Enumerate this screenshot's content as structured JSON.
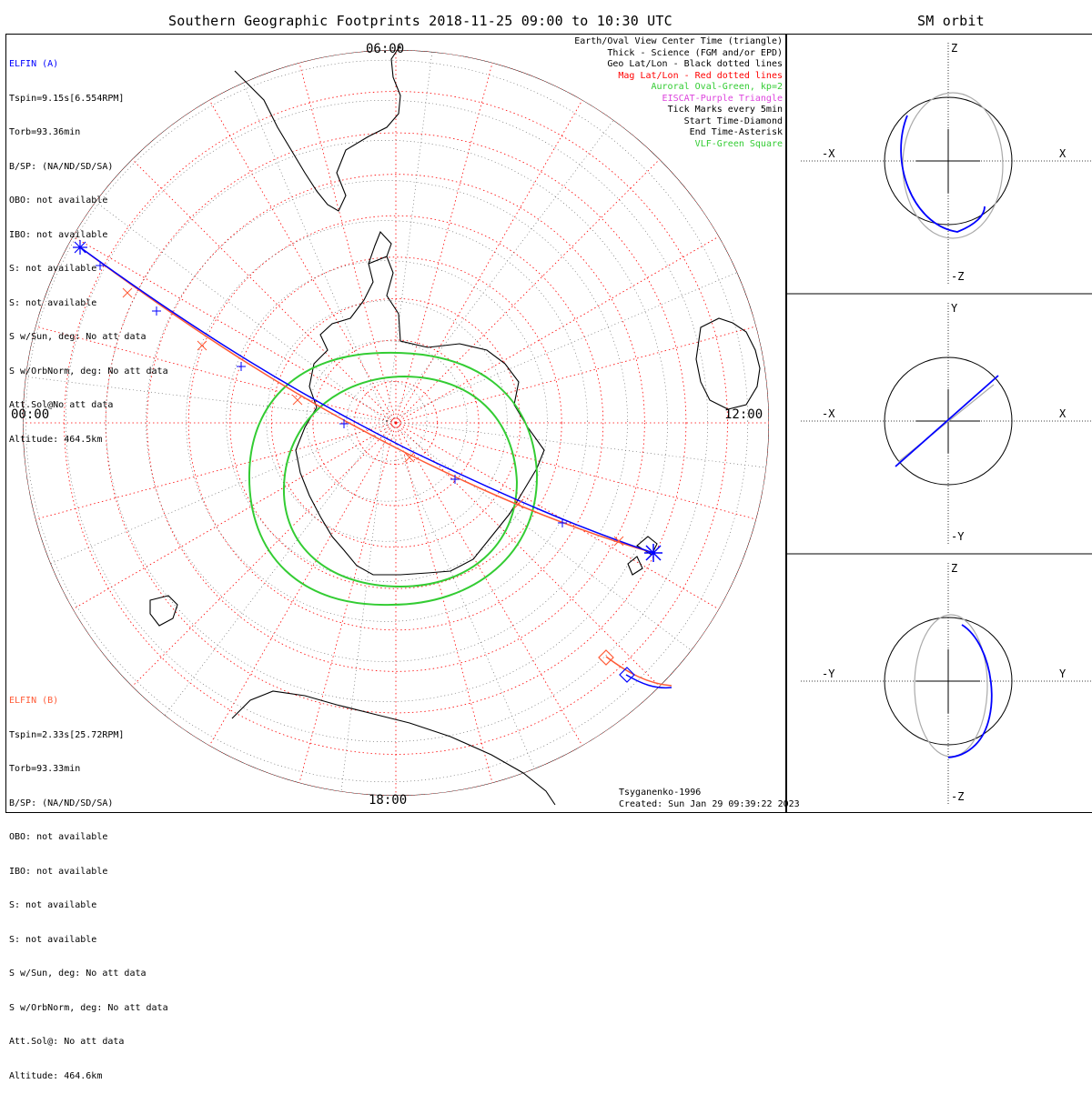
{
  "header": {
    "main_title": "Southern Geographic Footprints 2018-11-25 09:00 to 10:30 UTC",
    "sm_title": "SM orbit"
  },
  "elfin_a": {
    "name": "ELFIN (A)",
    "color": "#0000ff",
    "lines": [
      "Tspin=9.15s[6.554RPM]",
      "Torb=93.36min",
      "B/SP: (NA/ND/SD/SA)",
      "OBO: not available",
      "IBO: not available",
      "S: not available",
      "S: not available",
      "S w/Sun, deg: No att data",
      "S w/OrbNorm, deg: No att data",
      "Att.Sol@No att data",
      "Altitude: 464.5km"
    ]
  },
  "elfin_b": {
    "name": "ELFIN (B)",
    "color": "#ff5a36",
    "lines": [
      "Tspin=2.33s[25.72RPM]",
      "Torb=93.33min",
      "B/SP: (NA/ND/SD/SA)",
      "OBO: not available",
      "IBO: not available",
      "S: not available",
      "S: not available",
      "S w/Sun, deg: No att data",
      "S w/OrbNorm, deg: No att data",
      "Att.Sol@: No att data",
      "Altitude: 464.6km"
    ]
  },
  "legend": [
    {
      "text": "Earth/Oval View Center Time (triangle)",
      "color": "#000000"
    },
    {
      "text": "Thick - Science (FGM and/or EPD)",
      "color": "#000000"
    },
    {
      "text": "Geo Lat/Lon - Black dotted lines",
      "color": "#000000"
    },
    {
      "text": "Mag Lat/Lon - Red dotted lines",
      "color": "#ff0000"
    },
    {
      "text": "Auroral Oval-Green, kp=2",
      "color": "#33cc33"
    },
    {
      "text": "EISCAT-Purple Triangle",
      "color": "#dd44dd"
    },
    {
      "text": "Tick Marks every 5min",
      "color": "#000000"
    },
    {
      "text": "Start Time-Diamond",
      "color": "#000000"
    },
    {
      "text": "End Time-Asterisk",
      "color": "#000000"
    },
    {
      "text": "VLF-Green Square",
      "color": "#33cc33"
    }
  ],
  "map": {
    "hour_labels": {
      "top": "06:00",
      "left": "00:00",
      "right": "12:00",
      "bottom": "18:00"
    }
  },
  "footer": {
    "model": "Tsyganenko-1996",
    "created": "Created: Sun Jan 29 09:39:22 2023"
  },
  "sm_panels": [
    {
      "top": "Z",
      "bottom": "-Z",
      "left": "-X",
      "right": "X"
    },
    {
      "top": "Y",
      "bottom": "-Y",
      "left": "-X",
      "right": "X"
    },
    {
      "top": "Z",
      "bottom": "-Z",
      "left": "-Y",
      "right": "Y"
    }
  ],
  "colors": {
    "elfin_a": "#0000ff",
    "elfin_b": "#ff5a36",
    "auroral_oval": "#33cc33",
    "mag_grid": "#ff0000",
    "geo_grid": "#000000"
  }
}
